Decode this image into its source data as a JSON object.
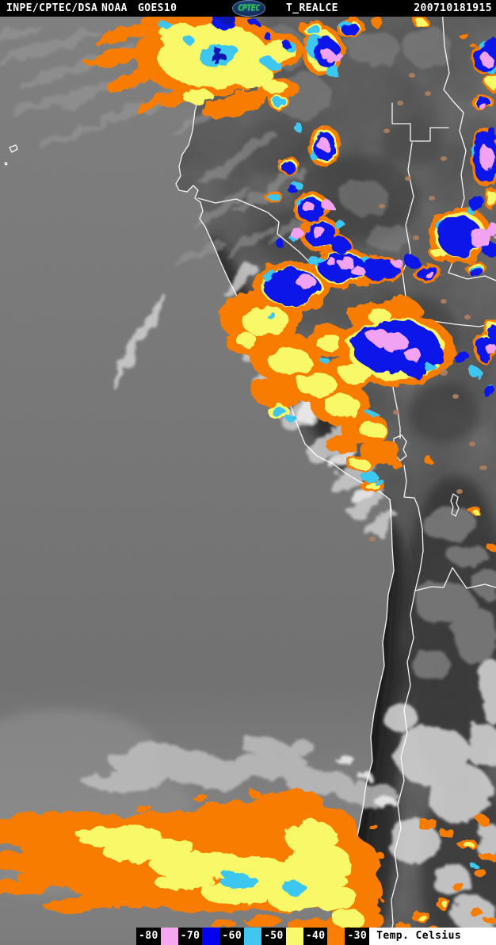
{
  "header": {
    "source": "INPE/CPTEC/DSA",
    "agency": "NOAA",
    "satellite": "GOES10",
    "logo_text": "CPTEC",
    "product": "T_REALCE",
    "timestamp": "200710181915"
  },
  "legend": {
    "title": "Temp. Celsius",
    "items": [
      {
        "label": "-80",
        "swatch": "#f7a6f0"
      },
      {
        "label": "-70",
        "swatch": "#0202f0"
      },
      {
        "label": "-60",
        "swatch": "#41c6f0"
      },
      {
        "label": "-50",
        "swatch": "#faf96e"
      },
      {
        "label": "-40",
        "swatch": "#f97d06"
      },
      {
        "label": "-30",
        "swatch": ""
      }
    ]
  },
  "map_colors": {
    "ocean_gray": "#767676",
    "land_gray": "#4f4f4f",
    "enhancement_orange": "#f87c00",
    "enhancement_yellow": "#f8f868",
    "enhancement_cyan": "#3cc6f0",
    "enhancement_blue": "#0714e8",
    "enhancement_pink": "#f2a2f2",
    "border_line": "#ffffff"
  }
}
